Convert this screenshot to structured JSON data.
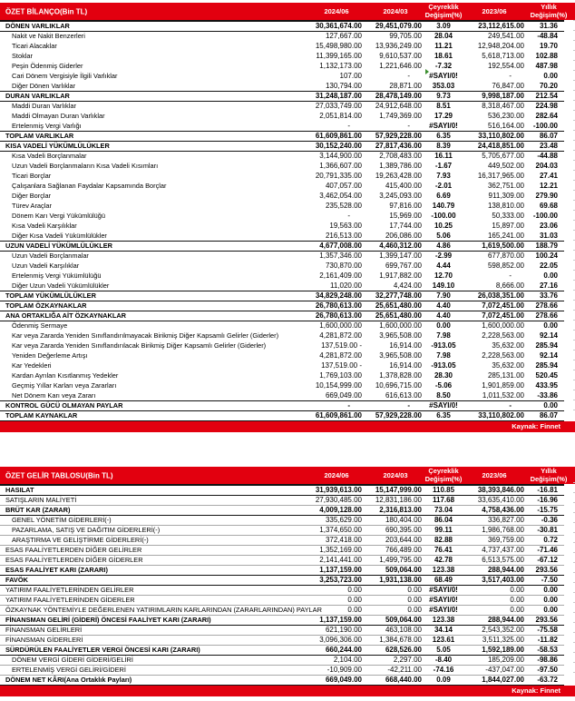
{
  "page": {
    "source_label": "Kaynak: Finnet",
    "accent_red": "#e2000f"
  },
  "balance_sheet": {
    "title": "ÖZET BİLANÇO(Bin TL)",
    "columns": [
      "2024/06",
      "2024/03",
      "Çeyreklik Değişim(%)",
      "2023/06",
      "Yıllık Değişim(%)"
    ],
    "rows": [
      {
        "label": "DÖNEN VARLIKLAR",
        "bold": true,
        "values": [
          "30,361,674.00",
          "29,451,079.00",
          "3.09",
          "23,112,615.00",
          "31.36"
        ]
      },
      {
        "label": "Nakit ve Nakit Benzerleri",
        "indent": 1,
        "values": [
          "127,667.00",
          "99,705.00",
          "28.04",
          "249,541.00",
          "-48.84"
        ]
      },
      {
        "label": "Ticari Alacaklar",
        "indent": 1,
        "values": [
          "15,498,980.00",
          "13,936,249.00",
          "11.21",
          "12,948,204.00",
          "19.70"
        ]
      },
      {
        "label": "Stoklar",
        "indent": 1,
        "values": [
          "11,399,165.00",
          "9,610,537.00",
          "18.61",
          "5,618,713.00",
          "102.88"
        ]
      },
      {
        "label": "Peşin Ödenmiş Giderler",
        "indent": 1,
        "values": [
          "1,132,173.00",
          "1,221,646.00",
          "-7.32",
          "192,554.00",
          "487.98"
        ]
      },
      {
        "label": "Cari Dönem Vergisiyle İlgili Varlıklar",
        "indent": 1,
        "flag": true,
        "values": [
          "107.00",
          "-",
          "#SAYI/0!",
          "-",
          "0.00"
        ]
      },
      {
        "label": "Diğer Dönen Varlıklar",
        "indent": 1,
        "values": [
          "130,794.00",
          "28,871.00",
          "353.03",
          "76,847.00",
          "70.20"
        ]
      },
      {
        "label": "DURAN VARLIKLAR",
        "bold": true,
        "values": [
          "31,248,187.00",
          "28,478,149.00",
          "9.73",
          "9,998,187.00",
          "212.54"
        ]
      },
      {
        "label": "Maddi Duran Varlıklar",
        "indent": 1,
        "values": [
          "27,033,749.00",
          "24,912,648.00",
          "8.51",
          "8,318,467.00",
          "224.98"
        ]
      },
      {
        "label": "Maddi Olmayan Duran Varlıklar",
        "indent": 1,
        "values": [
          "2,051,814.00",
          "1,749,369.00",
          "17.29",
          "536,230.00",
          "282.64"
        ]
      },
      {
        "label": "Ertelenmiş Vergi Varlığı",
        "indent": 1,
        "values": [
          "-",
          "-",
          "#SAYI/0!",
          "516,164.00",
          "-100.00"
        ]
      },
      {
        "label": "TOPLAM VARLIKLAR",
        "bold": true,
        "values": [
          "61,609,861.00",
          "57,929,228.00",
          "6.35",
          "33,110,802.00",
          "86.07"
        ]
      },
      {
        "label": "KISA VADELİ YÜKÜMLÜLÜKLER",
        "bold": true,
        "values": [
          "30,152,240.00",
          "27,817,436.00",
          "8.39",
          "24,418,851.00",
          "23.48"
        ]
      },
      {
        "label": "Kısa Vadeli Borçlanmalar",
        "indent": 1,
        "values": [
          "3,144,900.00",
          "2,708,483.00",
          "16.11",
          "5,705,677.00",
          "-44.88"
        ]
      },
      {
        "label": "Uzun Vadeli Borçlanmaların Kısa Vadeli Kısımları",
        "indent": 1,
        "values": [
          "1,366,607.00",
          "1,389,786.00",
          "-1.67",
          "449,502.00",
          "204.03"
        ]
      },
      {
        "label": "Ticari Borçlar",
        "indent": 1,
        "values": [
          "20,791,335.00",
          "19,263,428.00",
          "7.93",
          "16,317,965.00",
          "27.41"
        ]
      },
      {
        "label": "Çalışanlara Sağlanan Faydalar Kapsamında Borçlar",
        "indent": 1,
        "values": [
          "407,057.00",
          "415,400.00",
          "-2.01",
          "362,751.00",
          "12.21"
        ]
      },
      {
        "label": "Diğer Borçlar",
        "indent": 1,
        "values": [
          "3,462,054.00",
          "3,245,093.00",
          "6.69",
          "911,309.00",
          "279.90"
        ]
      },
      {
        "label": "Türev Araçlar",
        "indent": 1,
        "values": [
          "235,528.00",
          "97,816.00",
          "140.79",
          "138,810.00",
          "69.68"
        ]
      },
      {
        "label": "Dönem Karı Vergi Yükümlülüğü",
        "indent": 1,
        "values": [
          "-",
          "15,969.00",
          "-100.00",
          "50,333.00",
          "-100.00"
        ]
      },
      {
        "label": "Kısa Vadeli Karşılıklar",
        "indent": 1,
        "values": [
          "19,563.00",
          "17,744.00",
          "10.25",
          "15,897.00",
          "23.06"
        ]
      },
      {
        "label": "Diğer Kısa Vadeli Yükümlülükler",
        "indent": 1,
        "values": [
          "216,513.00",
          "206,086.00",
          "5.06",
          "165,241.00",
          "31.03"
        ]
      },
      {
        "label": "UZUN VADELİ YÜKÜMLÜLÜKLER",
        "bold": true,
        "values": [
          "4,677,008.00",
          "4,460,312.00",
          "4.86",
          "1,619,500.00",
          "188.79"
        ]
      },
      {
        "label": "Uzun Vadeli Borçlanmalar",
        "indent": 1,
        "values": [
          "1,357,346.00",
          "1,399,147.00",
          "-2.99",
          "677,870.00",
          "100.24"
        ]
      },
      {
        "label": "Uzun Vadeli Karşılıklar",
        "indent": 1,
        "values": [
          "730,870.00",
          "699,767.00",
          "4.44",
          "598,852.00",
          "22.05"
        ]
      },
      {
        "label": "Ertelenmiş Vergi Yükümlülüğü",
        "indent": 1,
        "values": [
          "2,161,409.00",
          "1,917,882.00",
          "12.70",
          "-",
          "0.00"
        ]
      },
      {
        "label": "Diğer Uzun Vadeli Yükümlülükler",
        "indent": 1,
        "values": [
          "11,020.00",
          "4,424.00",
          "149.10",
          "8,666.00",
          "27.16"
        ]
      },
      {
        "label": "TOPLAM YÜKÜMLÜLÜKLER",
        "bold": true,
        "values": [
          "34,829,248.00",
          "32,277,748.00",
          "7.90",
          "26,038,351.00",
          "33.76"
        ]
      },
      {
        "label": "TOPLAM ÖZKAYNAKLAR",
        "bold": true,
        "values": [
          "26,780,613.00",
          "25,651,480.00",
          "4.40",
          "7,072,451.00",
          "278.66"
        ]
      },
      {
        "label": "ANA ORTAKLIĞA AİT ÖZKAYNAKLAR",
        "bold": true,
        "values": [
          "26,780,613.00",
          "25,651,480.00",
          "4.40",
          "7,072,451.00",
          "278.66"
        ]
      },
      {
        "label": "Ödenmiş Sermaye",
        "indent": 1,
        "values": [
          "1,600,000.00",
          "1,600,000.00",
          "0.00",
          "1,600,000.00",
          "0.00"
        ]
      },
      {
        "label": "Kar veya Zararda Yeniden Sınıflandırılmayacak Birikmiş Diğer Kapsamlı Gelirler (Giderler)",
        "indent": 1,
        "values": [
          "4,281,872.00",
          "3,965,508.00",
          "7.98",
          "2,228,563.00",
          "92.14"
        ]
      },
      {
        "label": "Kar veya Zararda Yeniden Sınıflandırılacak Birikmiş Diğer Kapsamlı Gelirler (Giderler)",
        "indent": 1,
        "values": [
          "137,519.00 -",
          "16,914.00",
          "-913.05",
          "35,632.00",
          "285.94"
        ]
      },
      {
        "label": "Yeniden Değerleme Artışı",
        "indent": 1,
        "values": [
          "4,281,872.00",
          "3,965,508.00",
          "7.98",
          "2,228,563.00",
          "92.14"
        ]
      },
      {
        "label": "Kar Yedekleri",
        "indent": 1,
        "values": [
          "137,519.00 -",
          "16,914.00",
          "-913.05",
          "35,632.00",
          "285.94"
        ]
      },
      {
        "label": "Kardan Ayrılan Kısıtlanmış Yedekler",
        "indent": 1,
        "values": [
          "1,769,103.00",
          "1,378,828.00",
          "28.30",
          "285,131.00",
          "520.45"
        ]
      },
      {
        "label": "Geçmiş Yıllar Karları veya Zararları",
        "indent": 1,
        "values": [
          "10,154,999.00",
          "10,696,715.00",
          "-5.06",
          "1,901,859.00",
          "433.95"
        ]
      },
      {
        "label": "Net Dönem Karı veya Zararı",
        "indent": 1,
        "values": [
          "669,049.00",
          "616,613.00",
          "8.50",
          "1,011,532.00",
          "-33.86"
        ]
      },
      {
        "label": "KONTROL GÜCÜ OLMAYAN PAYLAR",
        "bold": true,
        "values": [
          "-",
          "-",
          "#SAYI/0!",
          "-",
          "0.00"
        ]
      },
      {
        "label": "TOPLAM KAYNAKLAR",
        "bold": true,
        "values": [
          "61,609,861.00",
          "57,929,228.00",
          "6.35",
          "33,110,802.00",
          "86.07"
        ]
      }
    ]
  },
  "income_statement": {
    "title": "ÖZET GELİR TABLOSU(Bin TL)",
    "columns": [
      "2024/06",
      "2024/03",
      "Çeyreklik Değişim(%)",
      "2023/06",
      "Yıllık Değişim(%)"
    ],
    "rows": [
      {
        "label": "HASILAT",
        "bold": true,
        "values": [
          "31,939,613.00",
          "15,147,999.00",
          "110.85",
          "38,393,846.00",
          "-16.81"
        ]
      },
      {
        "label": "SATIŞLARIN MALİYETİ",
        "values": [
          "27,930,485.00",
          "12,831,186.00",
          "117.68",
          "33,635,410.00",
          "-16.96"
        ]
      },
      {
        "label": "BRÜT KAR (ZARAR)",
        "bold": true,
        "values": [
          "4,009,128.00",
          "2,316,813.00",
          "73.04",
          "4,758,436.00",
          "-15.75"
        ]
      },
      {
        "label": "GENEL YÖNETİM GİDERLERİ(-)",
        "indent": 1,
        "values": [
          "335,629.00",
          "180,404.00",
          "86.04",
          "336,827.00",
          "-0.36"
        ]
      },
      {
        "label": "PAZARLAMA, SATIŞ VE DAĞITIM GİDERLERİ(-)",
        "indent": 1,
        "values": [
          "1,374,650.00",
          "690,395.00",
          "99.11",
          "1,986,768.00",
          "-30.81"
        ]
      },
      {
        "label": "ARAŞTIRMA VE GELİŞTİRME GİDERLERİ(-)",
        "indent": 1,
        "values": [
          "372,418.00",
          "203,644.00",
          "82.88",
          "369,759.00",
          "0.72"
        ]
      },
      {
        "label": "ESAS FAALİYETLERDEN DİĞER GELİRLER",
        "values": [
          "1,352,169.00",
          "766,489.00",
          "76.41",
          "4,737,437.00",
          "-71.46"
        ]
      },
      {
        "label": "ESAS FAALİYETLERDEN DİĞER GİDERLER",
        "values": [
          "2,141,441.00",
          "1,499,795.00",
          "42.78",
          "6,513,575.00",
          "-67.12"
        ]
      },
      {
        "label": "ESAS FAALİYET KARI (ZARARI)",
        "bold": true,
        "values": [
          "1,137,159.00",
          "509,064.00",
          "123.38",
          "288,944.00",
          "293.56"
        ]
      },
      {
        "label": "FAVÖK",
        "bold": true,
        "values": [
          "3,253,723.00",
          "1,931,138.00",
          "68.49",
          "3,517,403.00",
          "-7.50"
        ]
      },
      {
        "label": "YATIRIM FAALİYETLERİNDEN GELİRLER",
        "values": [
          "0.00",
          "0.00",
          "#SAYI/0!",
          "0.00",
          "0.00"
        ]
      },
      {
        "label": "YATIRIM FAALİYETLERİNDEN GİDERLER",
        "values": [
          "0.00",
          "0.00",
          "#SAYI/0!",
          "0.00",
          "0.00"
        ]
      },
      {
        "label": "ÖZKAYNAK YÖNTEMİYLE DEĞERLENEN YATIRIMLARIN KARLARINDAN (ZARARLARINDAN) PAYLAR",
        "values": [
          "0.00",
          "0.00",
          "#SAYI/0!",
          "0.00",
          "0.00"
        ]
      },
      {
        "label": "FİNANSMAN GELİRİ (GİDERİ) ÖNCESİ FAALİYET KARI (ZARARI)",
        "bold": true,
        "values": [
          "1,137,159.00",
          "509,064.00",
          "123.38",
          "288,944.00",
          "293.56"
        ]
      },
      {
        "label": "FİNANSMAN GELİRLERİ",
        "values": [
          "621,190.00",
          "463,108.00",
          "34.14",
          "2,543,352.00",
          "-75.58"
        ]
      },
      {
        "label": "FİNANSMAN GİDERLERİ",
        "values": [
          "3,096,306.00",
          "1,384,678.00",
          "123.61",
          "3,511,325.00",
          "-11.82"
        ]
      },
      {
        "label": "SÜRDÜRÜLEN FAALİYETLER VERGİ ÖNCESİ KARI (ZARARI)",
        "bold": true,
        "values": [
          "660,244.00",
          "628,526.00",
          "5.05",
          "1,592,189.00",
          "-58.53"
        ]
      },
      {
        "label": "DÖNEM VERGİ GİDERİ GİDERİ/GELİRİ",
        "indent": 1,
        "values": [
          "2,104.00",
          "2,297.00",
          "-8.40",
          "185,209.00",
          "-98.86"
        ]
      },
      {
        "label": "ERTELENMİŞ VERGİ GELİRİ/GİDERİ",
        "indent": 1,
        "values": [
          "-10,909.00",
          "-42,211.00",
          "-74.16",
          "-437,047.00",
          "-97.50"
        ]
      },
      {
        "label": "DÖNEM NET KÂRI(Ana Ortaklık Payları)",
        "bold": true,
        "values": [
          "669,049.00",
          "668,440.00",
          "0.09",
          "1,844,027.00",
          "-63.72"
        ]
      }
    ]
  }
}
